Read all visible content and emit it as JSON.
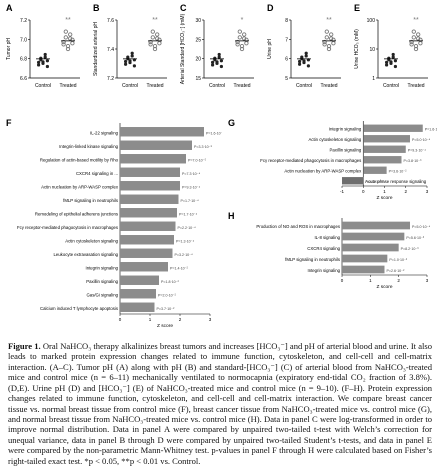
{
  "colors": {
    "bar": "#8c8c8c",
    "bar_dark": "#6e6e6e",
    "dot": "#222222",
    "asterisk": "#777777"
  },
  "scatter_panels": [
    {
      "letter": "A",
      "ylabel": "Tumor pH",
      "yticks": [
        "7.2",
        "7.0",
        "6.8",
        "6.6"
      ],
      "groups": [
        "Control",
        "Treated"
      ],
      "sig": "**"
    },
    {
      "letter": "B",
      "ylabel": "Standardized arterial pH",
      "yticks": [
        "7.6",
        "7.4",
        "7.2"
      ],
      "groups": [
        "Control",
        "Treated"
      ],
      "sig": "**"
    },
    {
      "letter": "C",
      "ylabel": "Arterial Standard [HCO₃⁻] (mM)",
      "yticks": [
        "30",
        "25",
        "20",
        "15"
      ],
      "groups": [
        "Control",
        "Treated"
      ],
      "sig": "*"
    },
    {
      "letter": "D",
      "ylabel": "Urine pH",
      "yticks": [
        "8",
        "7",
        "6",
        "5"
      ],
      "groups": [
        "Control",
        "Treated"
      ],
      "sig": "**"
    },
    {
      "letter": "E",
      "ylabel": "Urine HCO₃ (mM)",
      "yticks": [
        "100",
        "10",
        "1"
      ],
      "groups": [
        "Control",
        "Treated"
      ],
      "sig": "**"
    }
  ],
  "chart_data": [
    {
      "type": "bar",
      "panel": "F",
      "xlabel": "Z score",
      "categories": [
        "IL-22 signaling",
        "Integrin-linked kinase signaling",
        "Regulation of actin-based motility by Rho",
        "CXCR4 signaling in ...",
        "Actin nucleation by ARP-WASP complex",
        "fMLP signaling in neutrophils",
        "Remodeling of epithelial adherens junctions",
        "Fcγ receptor-mediated phagocytosis in macrophages",
        "Actin cytoskeleton signaling",
        "Leukocyte extravasation signaling",
        "Integrin signaling",
        "Paxillin signaling",
        "Gas/Gi signaling",
        "Calcium induced T lymphocyte apoptosis"
      ],
      "values": [
        2.8,
        2.4,
        2.2,
        2.0,
        2.0,
        1.95,
        1.9,
        1.85,
        1.8,
        1.75,
        1.6,
        1.3,
        1.2,
        1.15
      ],
      "pvalues": [
        "P=1.6·10⁻⁵",
        "P=3.3·10⁻⁵",
        "P=7.0·10⁻⁵",
        "P=7.3·10⁻⁴",
        "P=9.3·10⁻⁴",
        "P=1.7·10⁻⁴",
        "P=1.7·10⁻⁴",
        "P=2.2·10⁻⁴",
        "P=1.3·10⁻⁴",
        "P=3.2·10⁻⁴",
        "P=1.4·10⁻²",
        "P=1.8·10⁻²",
        "P=2.0·10⁻²",
        "P=3.7·10⁻²"
      ],
      "xticks": [
        "0",
        "1",
        "2",
        "3"
      ],
      "xlim": [
        0,
        3
      ]
    },
    {
      "type": "bar",
      "panel": "G",
      "xlabel": "Z score",
      "categories": [
        "Integrin signaling",
        "Actin cytoskeleton signaling",
        "Paxillin signaling",
        "Fcγ receptor-mediated phagocytosis in macrophages",
        "Actin nucleation by ARP-WASP complex",
        "Acute phase response signaling"
      ],
      "values": [
        2.8,
        2.2,
        2.0,
        1.8,
        1.1,
        -1.0
      ],
      "pvalues": [
        "P=1.6·10⁻⁴",
        "P=5.0·10⁻⁴",
        "P=9.3·10⁻⁴",
        "P=3.8·10⁻³",
        "P=3.6·10⁻²",
        "P=4.4·10⁻²"
      ],
      "xticks": [
        "-1",
        "0",
        "1",
        "2",
        "3"
      ],
      "xlim": [
        -1,
        3
      ]
    },
    {
      "type": "bar",
      "panel": "H",
      "xlabel": "Z score",
      "categories": [
        "Production of NO and ROS in macrophages",
        "IL-8 signaling",
        "CXCR4 signaling",
        "fMLP signaling in neutrophils",
        "Integrin signaling"
      ],
      "values": [
        2.4,
        2.2,
        2.0,
        1.6,
        1.5
      ],
      "pvalues": [
        "P=5.0·10⁻⁴",
        "P=5.6·10⁻³",
        "P=8.2·10⁻³",
        "P=1.0·10⁻²",
        "P=2.6·10⁻²"
      ],
      "xticks": [
        "0",
        "1",
        "2",
        "3"
      ],
      "xlim": [
        0,
        3
      ]
    }
  ],
  "caption": {
    "label": "Figure 1.",
    "text": " Oral NaHCO₃ therapy alkalinizes breast tumors and increases [HCO₃⁻] and pH of arterial blood and urine. It also leads to marked protein expression changes related to immune function, cytoskeleton, and cell-cell and cell-matrix interaction. (A–C). Tumor pH (A) along with pH (B) and standard-[HCO₃⁻] (C) of arterial blood from NaHCO₃-treated mice and control mice (n = 6–11) mechanically ventilated to normocapnia (expiratory end-tidal CO₂ fraction of 3.8%). (D,E). Urine pH (D) and [HCO₃⁻] (E) of NaHCO₃-treated mice and control mice (n = 9–10). (F–H). Protein expression changes related to immune function, cytoskeleton, and cell-cell and cell-matrix interaction. We compare breast cancer tissue vs. normal breast tissue from control mice (F), breast cancer tissue from NaHCO₃-treated mice vs. control mice (G), and normal breast tissue from NaHCO₃-treated mice vs. control mice (H). Data in panel C were log-transformed in order to improve normal distribution. Data in panel A were compared by unpaired two-tailed t-test with Welch’s correction for unequal variance, data in panel B through D were compared by unpaired two-tailed Student’s t-tests, and data in panel E were compared by the non-parametric Mann-Whitney test. p-values in panel F through H were calculated based on Fisher’s right-tailed exact test. *p < 0.05, **p < 0.01 vs. Control."
  }
}
